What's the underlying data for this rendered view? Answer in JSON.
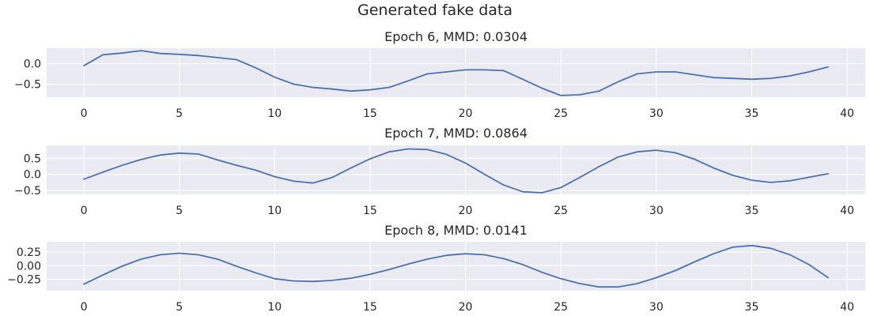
{
  "figure": {
    "suptitle": "Generated fake data"
  },
  "colors": {
    "line": "#4c72b0",
    "panel_background": "#eaeaf2",
    "grid": "#ffffff"
  },
  "chart_data": [
    {
      "type": "line",
      "title": "Epoch 6, MMD: 0.0304",
      "xlabel": "",
      "ylabel": "",
      "grid": true,
      "xlim": [
        -1.95,
        40.95
      ],
      "ylim": [
        -0.82,
        0.38
      ],
      "xticks": [
        0,
        5,
        10,
        15,
        20,
        25,
        30,
        35,
        40
      ],
      "yticks": [
        0.0,
        -0.5
      ],
      "ytick_labels": [
        "0.0",
        "−0.5"
      ],
      "x": [
        0,
        1,
        2,
        3,
        4,
        5,
        6,
        7,
        8,
        9,
        10,
        11,
        12,
        13,
        14,
        15,
        16,
        17,
        18,
        19,
        20,
        21,
        22,
        23,
        24,
        25,
        26,
        27,
        28,
        29,
        30,
        31,
        32,
        33,
        34,
        35,
        36,
        37,
        38,
        39
      ],
      "series": [
        {
          "values": [
            -0.05,
            0.22,
            0.26,
            0.32,
            0.25,
            0.23,
            0.2,
            0.15,
            0.1,
            -0.1,
            -0.33,
            -0.5,
            -0.58,
            -0.62,
            -0.67,
            -0.64,
            -0.58,
            -0.42,
            -0.25,
            -0.2,
            -0.15,
            -0.15,
            -0.17,
            -0.38,
            -0.6,
            -0.78,
            -0.76,
            -0.67,
            -0.44,
            -0.25,
            -0.2,
            -0.2,
            -0.27,
            -0.34,
            -0.36,
            -0.38,
            -0.36,
            -0.3,
            -0.2,
            -0.08
          ]
        }
      ]
    },
    {
      "type": "line",
      "title": "Epoch 7, MMD: 0.0864",
      "xlabel": "",
      "ylabel": "",
      "grid": true,
      "xlim": [
        -1.95,
        40.95
      ],
      "ylim": [
        -0.62,
        0.9
      ],
      "xticks": [
        0,
        5,
        10,
        15,
        20,
        25,
        30,
        35,
        40
      ],
      "yticks": [
        0.5,
        0.0,
        -0.5
      ],
      "ytick_labels": [
        "0.5",
        "0.0",
        "−0.5"
      ],
      "x": [
        0,
        1,
        2,
        3,
        4,
        5,
        6,
        7,
        8,
        9,
        10,
        11,
        12,
        13,
        14,
        15,
        16,
        17,
        18,
        19,
        20,
        21,
        22,
        23,
        24,
        25,
        26,
        27,
        28,
        29,
        30,
        31,
        32,
        33,
        34,
        35,
        36,
        37,
        38,
        39
      ],
      "series": [
        {
          "values": [
            -0.15,
            0.07,
            0.28,
            0.46,
            0.6,
            0.66,
            0.63,
            0.45,
            0.28,
            0.13,
            -0.07,
            -0.21,
            -0.27,
            -0.1,
            0.2,
            0.48,
            0.7,
            0.79,
            0.77,
            0.62,
            0.35,
            0.0,
            -0.33,
            -0.54,
            -0.57,
            -0.41,
            -0.09,
            0.24,
            0.54,
            0.7,
            0.75,
            0.67,
            0.47,
            0.2,
            -0.03,
            -0.18,
            -0.25,
            -0.2,
            -0.09,
            0.02
          ]
        }
      ]
    },
    {
      "type": "line",
      "title": "Epoch 8, MMD: 0.0141",
      "xlabel": "",
      "ylabel": "",
      "grid": true,
      "xlim": [
        -1.95,
        40.95
      ],
      "ylim": [
        -0.46,
        0.44
      ],
      "xticks": [
        0,
        5,
        10,
        15,
        20,
        25,
        30,
        35,
        40
      ],
      "yticks": [
        0.25,
        0.0,
        -0.25
      ],
      "ytick_labels": [
        "0.25",
        "0.00",
        "−0.25"
      ],
      "x": [
        0,
        1,
        2,
        3,
        4,
        5,
        6,
        7,
        8,
        9,
        10,
        11,
        12,
        13,
        14,
        15,
        16,
        17,
        18,
        19,
        20,
        21,
        22,
        23,
        24,
        25,
        26,
        27,
        28,
        29,
        30,
        31,
        32,
        33,
        34,
        35,
        36,
        37,
        38,
        39
      ],
      "series": [
        {
          "values": [
            -0.34,
            -0.17,
            -0.01,
            0.12,
            0.2,
            0.23,
            0.2,
            0.12,
            -0.01,
            -0.13,
            -0.24,
            -0.28,
            -0.29,
            -0.27,
            -0.23,
            -0.16,
            -0.07,
            0.03,
            0.12,
            0.19,
            0.22,
            0.2,
            0.13,
            0.02,
            -0.12,
            -0.24,
            -0.33,
            -0.39,
            -0.39,
            -0.33,
            -0.22,
            -0.09,
            0.07,
            0.22,
            0.34,
            0.37,
            0.32,
            0.2,
            0.02,
            -0.22
          ]
        }
      ]
    }
  ]
}
